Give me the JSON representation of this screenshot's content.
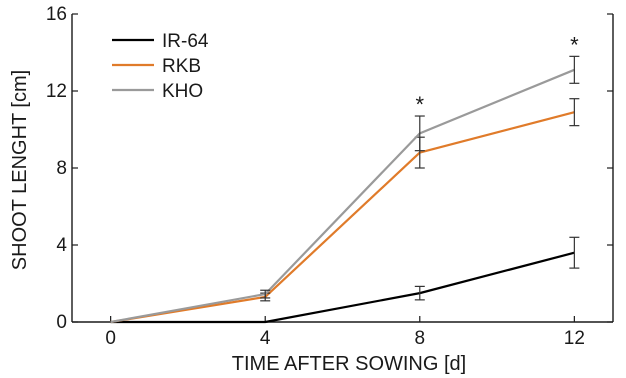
{
  "chart_data": {
    "type": "line",
    "title": "",
    "xlabel": "TIME AFTER SOWING [d]",
    "ylabel": "SHOOT LENGHT [cm]",
    "x": [
      0,
      4,
      8,
      12
    ],
    "xlim": [
      -1,
      13
    ],
    "ylim": [
      0,
      16
    ],
    "xticks": [
      "0",
      "4",
      "8",
      "12"
    ],
    "yticks": [
      "0",
      "4",
      "8",
      "12",
      "16"
    ],
    "grid": false,
    "legend": "top-left",
    "series": [
      {
        "name": "IR-64",
        "color": "#000000",
        "values": [
          0,
          0,
          1.5,
          3.6
        ],
        "errors": [
          0,
          0,
          0.35,
          0.8
        ]
      },
      {
        "name": "RKB",
        "color": "#e07b2a",
        "values": [
          0,
          1.3,
          8.8,
          10.9
        ],
        "errors": [
          0,
          0.2,
          0.8,
          0.7
        ]
      },
      {
        "name": "KHO",
        "color": "#9a9a9a",
        "values": [
          0,
          1.45,
          9.8,
          13.1
        ],
        "errors": [
          0,
          0.2,
          0.9,
          0.7
        ]
      }
    ],
    "annotations": [
      {
        "text": "*",
        "x": 8
      },
      {
        "text": "*",
        "x": 12
      }
    ]
  }
}
